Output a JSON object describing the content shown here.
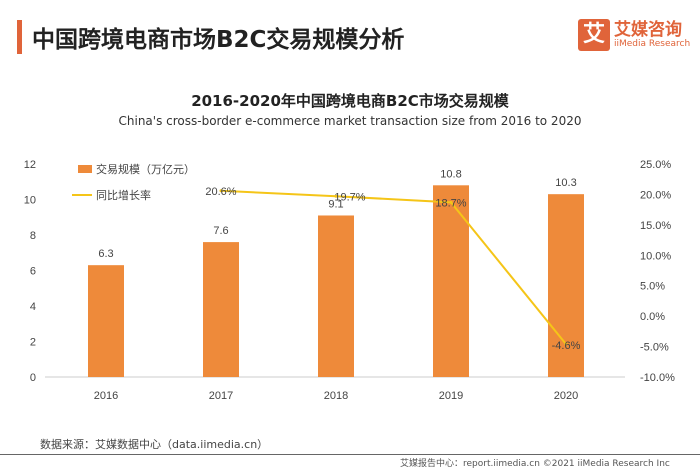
{
  "header": {
    "title": "中国跨境电商市场B2C交易规模分析",
    "logo_cn": "艾媒咨询",
    "logo_en": "iiMedia Research",
    "logo_mark": "艾"
  },
  "footer": {
    "source": "数据来源：艾媒数据中心（data.iimedia.cn）",
    "credit": "艾媒报告中心：report.iimedia.cn  ©2021  iiMedia Research Inc"
  },
  "colors": {
    "accent": "#e0643a",
    "bar": "#ee8a3a",
    "line": "#f5c518"
  },
  "chart_data": {
    "type": "bar+line",
    "title": "2016-2020年中国跨境电商B2C市场交易规模",
    "subtitle": "China's cross-border e-commerce market transaction size from 2016 to 2020",
    "categories": [
      "2016",
      "2017",
      "2018",
      "2019",
      "2020"
    ],
    "series": [
      {
        "name": "交易规模（万亿元）",
        "type": "bar",
        "axis": "left",
        "values": [
          6.3,
          7.6,
          9.1,
          10.8,
          10.3
        ],
        "labels": [
          "6.3",
          "7.6",
          "9.1",
          "10.8",
          "10.3"
        ]
      },
      {
        "name": "同比增长率",
        "type": "line",
        "axis": "right",
        "values": [
          null,
          20.6,
          19.7,
          18.7,
          -4.6
        ],
        "labels": [
          "",
          "20.6%",
          "19.7%",
          "18.7%",
          "-4.6%"
        ]
      }
    ],
    "left_axis": {
      "ylim": [
        0,
        12
      ],
      "ticks": [
        "0",
        "2",
        "4",
        "6",
        "8",
        "10",
        "12"
      ]
    },
    "right_axis": {
      "ylim": [
        -10,
        25
      ],
      "ticks": [
        "-10.0%",
        "-5.0%",
        "0.0%",
        "5.0%",
        "10.0%",
        "15.0%",
        "20.0%",
        "25.0%"
      ]
    },
    "grid": false,
    "legend": "top-left"
  }
}
